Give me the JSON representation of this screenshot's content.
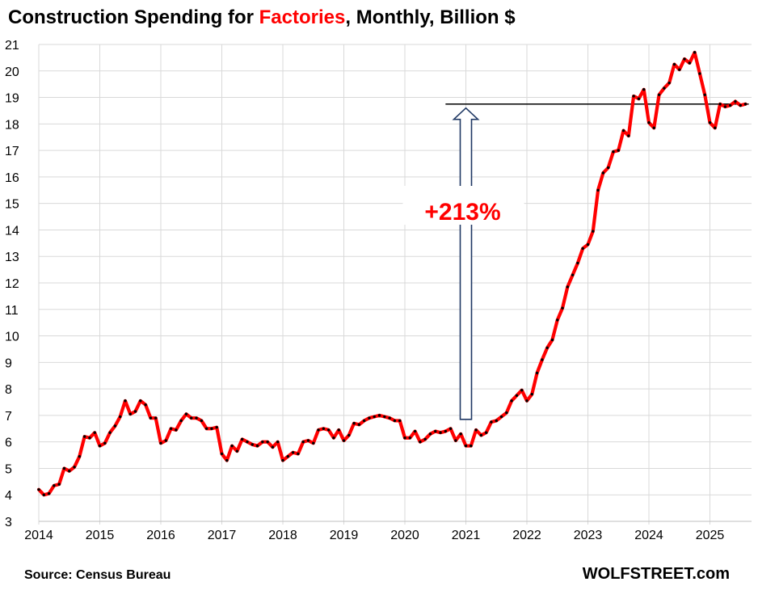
{
  "title": {
    "prefix": "Construction Spending for ",
    "highlight": "Factories",
    "suffix": ", Monthly, Billion $"
  },
  "source": "Source: Census Bureau",
  "brand": "WOLFSTREET.com",
  "annotation": "+213%",
  "colors": {
    "line": "#ff0000",
    "marker": "#000000",
    "highlight": "#ff0000",
    "annotation": "#ff0000",
    "arrow_fill": "#ffffff",
    "arrow_stroke": "#1f3864",
    "grid": "#d9d9d9"
  },
  "chart_data": {
    "type": "line",
    "title": "Construction Spending for Factories, Monthly, Billion $",
    "xlabel": "",
    "ylabel": "",
    "ylim": [
      3,
      21
    ],
    "y_ticks": [
      "3",
      "4",
      "5",
      "6",
      "7",
      "8",
      "9",
      "10",
      "11",
      "12",
      "13",
      "14",
      "15",
      "16",
      "17",
      "18",
      "19",
      "20",
      "21"
    ],
    "x_ticks": [
      "2014",
      "2015",
      "2016",
      "2017",
      "2018",
      "2019",
      "2020",
      "2021",
      "2022",
      "2023",
      "2024",
      "2025"
    ],
    "x_start": "2014-01",
    "grid": "vertical and horizontal",
    "reference_line": {
      "y": 18.75,
      "from": "2020-09",
      "to": "2025-08"
    },
    "arrow": {
      "from_date": "2021-01",
      "from_y": 6.85,
      "to_y": 18.6,
      "label": "+213%"
    },
    "series": [
      {
        "name": "",
        "values": [
          4.2,
          4.0,
          4.05,
          4.35,
          4.4,
          5.0,
          4.9,
          5.05,
          5.45,
          6.2,
          6.15,
          6.35,
          5.85,
          5.95,
          6.35,
          6.6,
          6.95,
          7.55,
          7.05,
          7.15,
          7.55,
          7.4,
          6.9,
          6.9,
          5.95,
          6.05,
          6.5,
          6.45,
          6.8,
          7.05,
          6.9,
          6.9,
          6.8,
          6.5,
          6.5,
          6.55,
          5.55,
          5.3,
          5.85,
          5.65,
          6.1,
          6.0,
          5.9,
          5.85,
          6.0,
          6.0,
          5.8,
          6.0,
          5.3,
          5.45,
          5.6,
          5.55,
          6.0,
          6.05,
          5.95,
          6.45,
          6.5,
          6.45,
          6.15,
          6.45,
          6.05,
          6.25,
          6.7,
          6.65,
          6.8,
          6.9,
          6.95,
          7.0,
          6.95,
          6.9,
          6.8,
          6.8,
          6.15,
          6.15,
          6.4,
          6.0,
          6.1,
          6.3,
          6.4,
          6.35,
          6.4,
          6.5,
          6.05,
          6.3,
          5.85,
          5.85,
          6.45,
          6.25,
          6.35,
          6.75,
          6.8,
          6.95,
          7.1,
          7.55,
          7.75,
          7.95,
          7.55,
          7.8,
          8.6,
          9.1,
          9.55,
          9.85,
          10.6,
          11.05,
          11.85,
          12.3,
          12.75,
          13.3,
          13.45,
          13.95,
          15.5,
          16.15,
          16.35,
          16.95,
          17.0,
          17.75,
          17.55,
          19.05,
          18.95,
          19.3,
          18.05,
          17.85,
          19.1,
          19.35,
          19.55,
          20.25,
          20.05,
          20.45,
          20.3,
          20.7,
          19.9,
          19.1,
          18.05,
          17.85,
          18.75,
          18.65,
          18.7,
          18.85,
          18.7,
          18.75
        ]
      }
    ]
  }
}
